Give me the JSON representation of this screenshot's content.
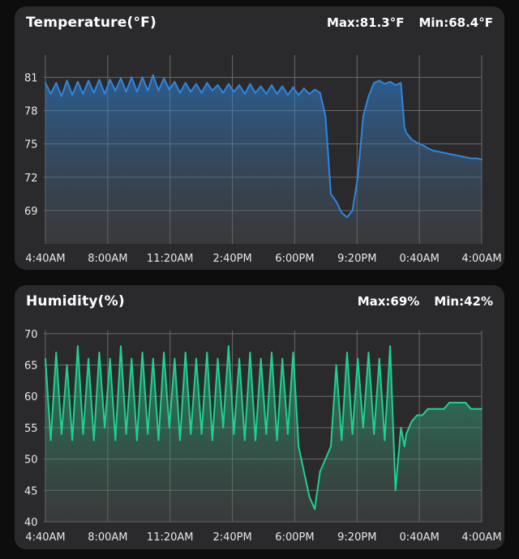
{
  "panels": [
    {
      "id": "temp",
      "title": "Temperature(°F)",
      "max_label": "Max:81.3°F",
      "min_label": "Min:68.4°F"
    },
    {
      "id": "hum",
      "title": "Humidity(%)",
      "max_label": "Max:69%",
      "min_label": "Min:42%"
    }
  ],
  "colors": {
    "temperature_line": "#2e86e0",
    "humidity_line": "#1fd190",
    "card_background": "#2a2a2c",
    "grid": "#6b6b6b",
    "text": "#ffffff"
  },
  "chart_data": [
    {
      "type": "area",
      "title": "Temperature(°F)",
      "y_unit": "°F",
      "max": 81.3,
      "min": 68.4,
      "x_tick_labels": [
        "4:40AM",
        "8:00AM",
        "11:20AM",
        "2:40PM",
        "6:00PM",
        "9:20PM",
        "0:40AM",
        "4:00AM"
      ],
      "y_ticks": [
        69,
        72,
        75,
        78,
        81
      ],
      "ylim": [
        66,
        83
      ],
      "xlim_hours": [
        0,
        24.3
      ],
      "grid": true,
      "x_hours": [
        0,
        0.3,
        0.6,
        0.9,
        1.2,
        1.5,
        1.8,
        2.1,
        2.4,
        2.7,
        3.0,
        3.3,
        3.6,
        3.9,
        4.2,
        4.5,
        4.8,
        5.1,
        5.4,
        5.7,
        6.0,
        6.3,
        6.6,
        6.9,
        7.2,
        7.5,
        7.8,
        8.1,
        8.4,
        8.7,
        9.0,
        9.3,
        9.6,
        9.9,
        10.2,
        10.5,
        10.8,
        11.1,
        11.4,
        11.7,
        12.0,
        12.3,
        12.6,
        12.9,
        13.2,
        13.5,
        13.8,
        14.1,
        14.4,
        14.7,
        15.0,
        15.3,
        15.6,
        15.9,
        16.2,
        16.5,
        16.8,
        17.1,
        17.4,
        17.7,
        18.0,
        18.3,
        18.6,
        18.9,
        19.2,
        19.5,
        19.8,
        20.0,
        20.1,
        20.4,
        20.7,
        21.0,
        21.3,
        21.6,
        21.9,
        22.2,
        22.5,
        22.8,
        23.1,
        23.4,
        23.7,
        24.0,
        24.3
      ],
      "values": [
        80.5,
        79.5,
        80.5,
        79.3,
        80.7,
        79.4,
        80.6,
        79.5,
        80.7,
        79.6,
        80.8,
        79.5,
        80.8,
        79.8,
        80.9,
        79.7,
        81.0,
        79.7,
        81.0,
        79.8,
        81.2,
        79.8,
        80.9,
        79.9,
        80.6,
        79.6,
        80.5,
        79.7,
        80.4,
        79.6,
        80.5,
        79.8,
        80.3,
        79.6,
        80.4,
        79.7,
        80.3,
        79.5,
        80.4,
        79.6,
        80.2,
        79.5,
        80.3,
        79.5,
        80.2,
        79.4,
        80.1,
        79.4,
        80.0,
        79.5,
        79.9,
        79.6,
        77.5,
        70.5,
        69.8,
        68.8,
        68.4,
        69.0,
        72.0,
        77.5,
        79.3,
        80.5,
        80.7,
        80.4,
        80.6,
        80.3,
        80.5,
        76.5,
        76.0,
        75.4,
        75.1,
        74.9,
        74.6,
        74.4,
        74.3,
        74.2,
        74.1,
        74.0,
        73.9,
        73.8,
        73.7,
        73.7,
        73.6
      ]
    },
    {
      "type": "area",
      "title": "Humidity(%)",
      "y_unit": "%",
      "max": 69,
      "min": 42,
      "x_tick_labels": [
        "4:40AM",
        "8:00AM",
        "11:20AM",
        "2:40PM",
        "6:00PM",
        "9:20PM",
        "0:40AM",
        "4:00AM"
      ],
      "y_ticks": [
        40,
        45,
        50,
        55,
        60,
        65,
        70
      ],
      "ylim": [
        40,
        70.5
      ],
      "xlim_hours": [
        0,
        24.3
      ],
      "grid": true,
      "x_hours": [
        0,
        0.3,
        0.6,
        0.9,
        1.2,
        1.5,
        1.8,
        2.1,
        2.4,
        2.7,
        3.0,
        3.3,
        3.6,
        3.9,
        4.2,
        4.5,
        4.8,
        5.1,
        5.4,
        5.7,
        6.0,
        6.3,
        6.6,
        6.9,
        7.2,
        7.5,
        7.8,
        8.1,
        8.4,
        8.7,
        9.0,
        9.3,
        9.6,
        9.9,
        10.2,
        10.5,
        10.8,
        11.1,
        11.4,
        11.7,
        12.0,
        12.3,
        12.6,
        12.9,
        13.2,
        13.5,
        13.8,
        14.1,
        14.4,
        14.7,
        15.0,
        15.3,
        15.6,
        15.9,
        16.2,
        16.5,
        16.8,
        17.1,
        17.4,
        17.7,
        18.0,
        18.3,
        18.6,
        18.9,
        19.2,
        19.5,
        19.8,
        20.0,
        20.1,
        20.4,
        20.7,
        21.0,
        21.3,
        21.6,
        21.9,
        22.2,
        22.5,
        22.8,
        23.1,
        23.4,
        23.7,
        24.0,
        24.3
      ],
      "values": [
        66,
        53,
        67,
        54,
        65,
        53,
        68,
        54,
        66,
        53,
        67,
        55,
        66,
        53,
        68,
        54,
        66,
        53,
        67,
        54,
        66,
        53,
        67,
        55,
        66,
        53,
        67,
        54,
        66,
        54,
        67,
        53,
        66,
        55,
        68,
        54,
        66,
        53,
        67,
        53,
        66,
        54,
        67,
        53,
        66,
        54,
        67,
        52,
        48,
        44,
        42,
        48,
        50,
        52,
        65,
        53,
        67,
        54,
        66,
        55,
        67,
        54,
        66,
        53,
        68,
        45,
        55,
        52,
        54,
        56,
        57,
        57,
        58,
        58,
        58,
        58,
        59,
        59,
        59,
        59,
        58,
        58,
        58
      ]
    }
  ]
}
